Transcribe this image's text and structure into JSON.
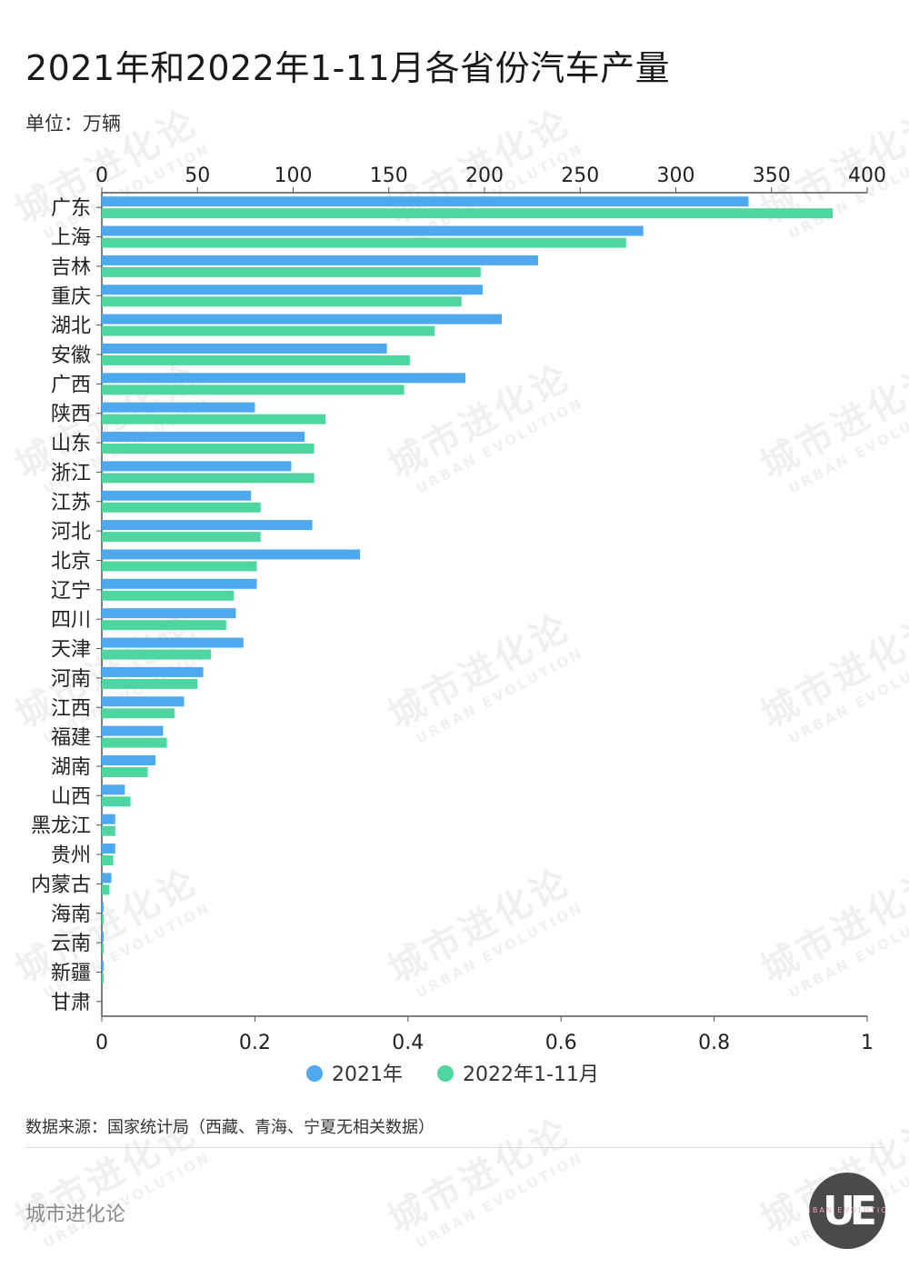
{
  "title": "2021年和2022年1-11月各省份汽车产量",
  "unit_label": "单位：万辆",
  "source": "数据来源：国家统计局（西藏、青海、宁夏无相关数据）",
  "brand": "城市进化论",
  "watermark": {
    "cn": "城市进化论",
    "en": "URBAN EVOLUTION"
  },
  "logo": {
    "mark": "UE",
    "text": "URBAN EVOLUTION"
  },
  "colors": {
    "series_2021": "#4ea8ee",
    "series_2022": "#4fd6a0",
    "axis": "#555555",
    "text": "#222222"
  },
  "chart_data": {
    "type": "bar",
    "orientation": "horizontal",
    "categories": [
      "广东",
      "上海",
      "吉林",
      "重庆",
      "湖北",
      "安徽",
      "广西",
      "陕西",
      "山东",
      "浙江",
      "江苏",
      "河北",
      "北京",
      "辽宁",
      "四川",
      "天津",
      "河南",
      "江西",
      "福建",
      "湖南",
      "山西",
      "黑龙江",
      "贵州",
      "内蒙古",
      "海南",
      "云南",
      "新疆",
      "甘肃"
    ],
    "series": [
      {
        "name": "2021年",
        "color": "#4ea8ee",
        "values": [
          338,
          283,
          228,
          199,
          209,
          149,
          190,
          80,
          106,
          99,
          78,
          110,
          135,
          81,
          70,
          74,
          53,
          43,
          32,
          28,
          12,
          7,
          7,
          5,
          1,
          1,
          1,
          0
        ]
      },
      {
        "name": "2022年1-11月",
        "color": "#4fd6a0",
        "values": [
          382,
          274,
          198,
          188,
          174,
          161,
          158,
          117,
          111,
          111,
          83,
          83,
          81,
          69,
          65,
          57,
          50,
          38,
          34,
          24,
          15,
          7,
          6,
          4,
          1,
          1,
          1,
          0
        ]
      }
    ],
    "top_axis": {
      "min": 0,
      "max": 400,
      "ticks": [
        0,
        50,
        100,
        150,
        200,
        250,
        300,
        350,
        400
      ]
    },
    "bottom_axis": {
      "min": 0,
      "max": 1,
      "ticks": [
        "0",
        "0.2",
        "0.4",
        "0.6",
        "0.8",
        "1"
      ]
    },
    "legend": {
      "position": "bottom-center",
      "items": [
        "2021年",
        "2022年1-11月"
      ]
    },
    "grid": false
  }
}
